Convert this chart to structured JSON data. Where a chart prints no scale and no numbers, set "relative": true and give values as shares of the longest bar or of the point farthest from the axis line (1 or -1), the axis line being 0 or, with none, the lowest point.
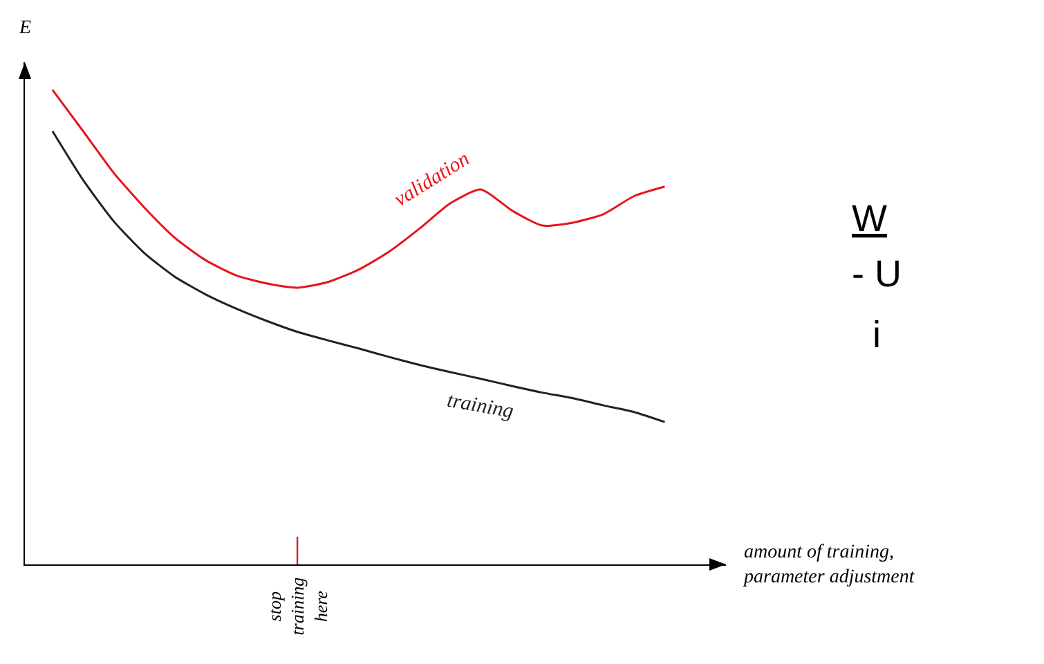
{
  "chart_data": {
    "type": "line",
    "relative": true,
    "ylabel": "E",
    "xlabel": "amount of training, parameter adjustment",
    "categories": [
      null,
      null,
      null,
      null,
      null,
      null,
      null,
      null,
      null,
      null,
      null,
      null,
      null,
      null,
      null,
      null,
      null,
      null,
      null,
      null,
      null
    ],
    "series": [
      {
        "name": "validation",
        "color": "#e8141b",
        "values": [
          1.0,
          0.913,
          0.825,
          0.752,
          0.688,
          0.641,
          0.609,
          0.592,
          0.583,
          0.595,
          0.621,
          0.659,
          0.708,
          0.761,
          0.79,
          0.746,
          0.714,
          0.72,
          0.738,
          0.776,
          0.796
        ]
      },
      {
        "name": "training",
        "color": "#222222",
        "values": [
          0.913,
          0.81,
          0.723,
          0.656,
          0.606,
          0.569,
          0.539,
          0.513,
          0.49,
          0.472,
          0.455,
          0.437,
          0.42,
          0.405,
          0.391,
          0.376,
          0.362,
          0.35,
          0.335,
          0.321,
          0.3
        ]
      }
    ],
    "annotations": [
      "stop training here",
      "W",
      "- U",
      "i"
    ],
    "grid": false,
    "legend": false
  }
}
